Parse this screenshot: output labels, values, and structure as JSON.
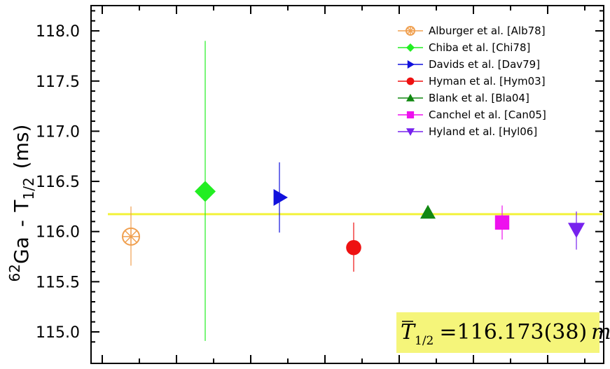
{
  "chart_data": {
    "type": "scatter",
    "ylabel": {
      "prefix_sup": "62",
      "prefix": "Ga",
      "separator": "-",
      "quantity": "T",
      "quantity_sub": "1/2",
      "unit": "(ms)"
    },
    "ylim": [
      114.9,
      118.25
    ],
    "yticks": [
      115.0,
      115.5,
      116.0,
      116.5,
      117.0,
      117.5,
      118.0
    ],
    "ytick_labels": [
      "115.0",
      "115.5",
      "116.0",
      "116.5",
      "117.0",
      "117.5",
      "118.0"
    ],
    "x_positions": 7,
    "grid": false,
    "legend_position": "top-right",
    "series": [
      {
        "name": "Alburger et al. [Alb78]",
        "x": 1,
        "y": 115.95,
        "err_low": 115.66,
        "err_high": 116.25,
        "color": "#f0a050",
        "marker": "circle-star"
      },
      {
        "name": "Chiba et al.   [Chi78]",
        "x": 2,
        "y": 116.4,
        "err_low": 114.91,
        "err_high": 117.9,
        "color": "#22ee22",
        "marker": "diamond"
      },
      {
        "name": "Davids et al. [Dav79]",
        "x": 3,
        "y": 116.34,
        "err_low": 115.99,
        "err_high": 116.69,
        "color": "#1111dd",
        "marker": "triangle-right"
      },
      {
        "name": "Hyman et al.   [Hym03]",
        "x": 4,
        "y": 115.84,
        "err_low": 115.6,
        "err_high": 116.09,
        "color": "#ee1111",
        "marker": "circle"
      },
      {
        "name": "Blank et al.   [Bla04]",
        "x": 5,
        "y": 116.19,
        "err_low": 116.19,
        "err_high": 116.19,
        "color": "#118811",
        "marker": "triangle-up"
      },
      {
        "name": "Canchel et al. [Can05]",
        "x": 6,
        "y": 116.09,
        "err_low": 115.92,
        "err_high": 116.26,
        "color": "#ee11ee",
        "marker": "square"
      },
      {
        "name": "Hyland et al. [Hyl06]",
        "x": 7,
        "y": 116.02,
        "err_low": 115.82,
        "err_high": 116.2,
        "color": "#7722ee",
        "marker": "triangle-down"
      }
    ],
    "average_line": {
      "y": 116.173,
      "color": "#f2f23a"
    },
    "result_box": {
      "symbol": "T",
      "subscript": "1/2",
      "equals": "=",
      "value": "116.173",
      "uncertainty": "(38)",
      "unit": "ms",
      "background": "#f5f57a"
    }
  }
}
